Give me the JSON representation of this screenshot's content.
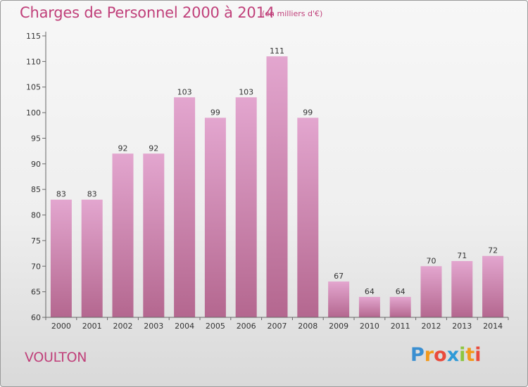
{
  "title": "Charges de Personnel 2000 à 2014",
  "subtitle": "(en milliers d'€)",
  "location": "VOULTON",
  "brand": {
    "letters": [
      "P",
      "r",
      "o",
      "x",
      "i",
      "t",
      "i"
    ],
    "colors": [
      "#3a8fd1",
      "#f29a1c",
      "#e94b3c",
      "#2e9ad8",
      "#8dc63f",
      "#f29a1c",
      "#e94b3c"
    ]
  },
  "colors": {
    "bar_top": "#e3a6cf",
    "bar_bottom": "#b4678f",
    "text_accent": "#c0407a"
  },
  "chart_data": {
    "type": "bar",
    "categories": [
      "2000",
      "2001",
      "2002",
      "2003",
      "2004",
      "2005",
      "2006",
      "2007",
      "2008",
      "2009",
      "2010",
      "2011",
      "2012",
      "2013",
      "2014"
    ],
    "values": [
      83,
      83,
      92,
      92,
      103,
      99,
      103,
      111,
      99,
      67,
      64,
      64,
      70,
      71,
      72
    ],
    "ylim": [
      60,
      115
    ],
    "yticks": [
      60,
      65,
      70,
      75,
      80,
      85,
      90,
      95,
      100,
      105,
      110,
      115
    ],
    "grid": false,
    "title": "Charges de Personnel 2000 à 2014",
    "xlabel": "",
    "ylabel": ""
  }
}
